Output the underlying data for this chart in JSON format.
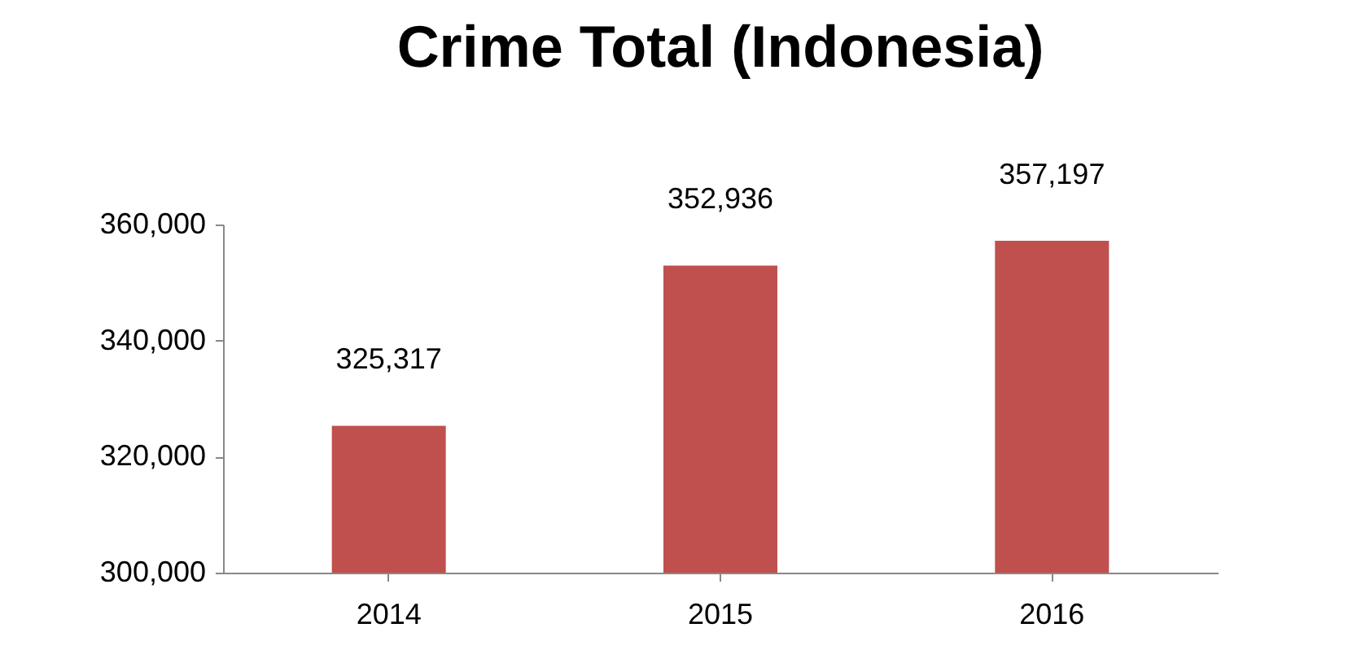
{
  "chart_data": {
    "type": "bar",
    "title": "Crime Total (Indonesia)",
    "categories": [
      "2014",
      "2015",
      "2016"
    ],
    "values": [
      325317,
      352936,
      357197
    ],
    "value_labels": [
      "325,317",
      "352,936",
      "357,197"
    ],
    "color": "#c0504d",
    "ylim": [
      300000,
      360000
    ],
    "yticks": [
      {
        "value": 300000,
        "label": "300,000"
      },
      {
        "value": 320000,
        "label": "320,000"
      },
      {
        "value": 340000,
        "label": "340,000"
      },
      {
        "value": 360000,
        "label": "360,000"
      }
    ],
    "grid": false
  }
}
